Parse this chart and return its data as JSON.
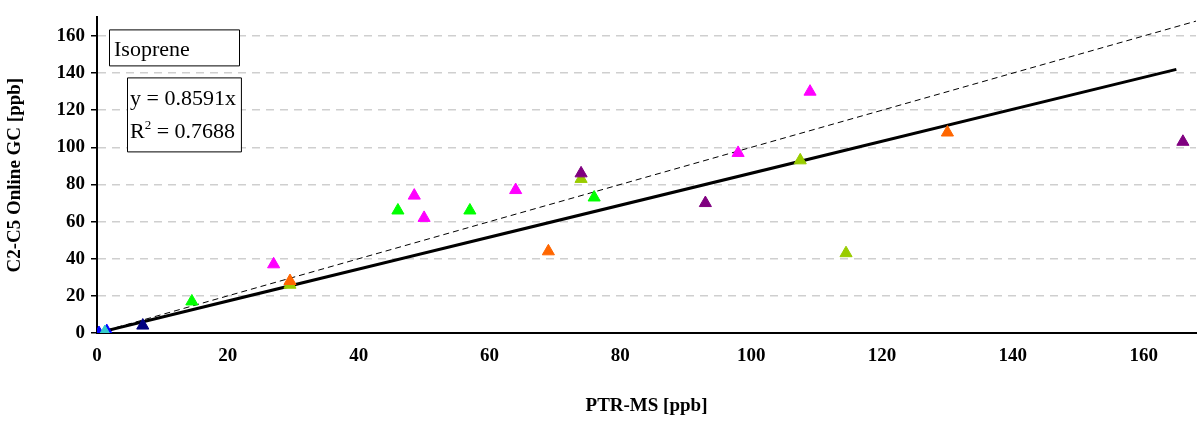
{
  "chart_data": {
    "type": "scatter",
    "xlabel": "PTR-MS [ppb]",
    "ylabel": "C2-C5 Online GC [ppb]",
    "annotations": [
      "Isoprene",
      "y = 0.8591x",
      "R$^{2}$ = 0.7688"
    ],
    "xlim": [
      0,
      168
    ],
    "xticks": [
      0,
      20,
      40,
      60,
      80,
      100,
      120,
      140,
      160
    ],
    "ylim": [
      0,
      170
    ],
    "yticks": [
      0,
      20,
      40,
      60,
      80,
      100,
      120,
      140,
      160
    ],
    "grid": "y",
    "legend": false,
    "marker": "triangle",
    "series": [
      {
        "color": "#ff00ff",
        "x": [
          27,
          48.5,
          50,
          64,
          98,
          109
        ],
        "values": [
          37,
          74,
          62,
          77,
          97,
          130
        ]
      },
      {
        "color": "#00ff00",
        "x": [
          14.5,
          46,
          57,
          76
        ],
        "values": [
          17,
          66,
          66,
          73
        ]
      },
      {
        "color": "#99cc00",
        "x": [
          29.5,
          74,
          107.5,
          114.5
        ],
        "values": [
          26,
          83,
          93,
          43
        ]
      },
      {
        "color": "#ff6600",
        "x": [
          29.5,
          69,
          130
        ],
        "values": [
          28,
          44,
          108
        ]
      },
      {
        "color": "#800080",
        "x": [
          74,
          93,
          166
        ],
        "values": [
          86,
          70,
          103
        ]
      },
      {
        "color": "#000080",
        "x": [
          7
        ],
        "values": [
          4
        ]
      },
      {
        "color": "#0000ff",
        "x": [
          0.3,
          1.5
        ],
        "values": [
          0,
          1
        ]
      },
      {
        "color": "#33cccc",
        "x": [
          1.2
        ],
        "values": [
          0.5
        ]
      },
      {
        "type": "line",
        "color": "#000000",
        "line_style": "dashed",
        "marker": "none",
        "x": [
          0,
          168
        ],
        "values": [
          0,
          168
        ]
      },
      {
        "type": "line",
        "color": "#000000",
        "line_style": "solid",
        "marker": "none",
        "x": [
          0,
          165
        ],
        "values": [
          0,
          142
        ]
      }
    ]
  }
}
